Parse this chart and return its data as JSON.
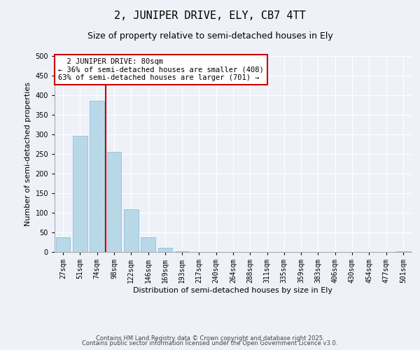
{
  "title": "2, JUNIPER DRIVE, ELY, CB7 4TT",
  "subtitle": "Size of property relative to semi-detached houses in Ely",
  "xlabel": "Distribution of semi-detached houses by size in Ely",
  "ylabel": "Number of semi-detached properties",
  "bar_labels": [
    "27sqm",
    "51sqm",
    "74sqm",
    "98sqm",
    "122sqm",
    "146sqm",
    "169sqm",
    "193sqm",
    "217sqm",
    "240sqm",
    "264sqm",
    "288sqm",
    "311sqm",
    "335sqm",
    "359sqm",
    "383sqm",
    "406sqm",
    "430sqm",
    "454sqm",
    "477sqm",
    "501sqm"
  ],
  "bar_values": [
    37,
    297,
    385,
    256,
    109,
    37,
    10,
    2,
    0,
    0,
    0,
    0,
    0,
    0,
    0,
    0,
    0,
    0,
    0,
    0,
    2
  ],
  "bar_color": "#b8d8e8",
  "bar_edge_color": "#8fbfda",
  "vline_color": "#cc0000",
  "vline_index": 2.5,
  "ylim": [
    0,
    500
  ],
  "yticks": [
    0,
    50,
    100,
    150,
    200,
    250,
    300,
    350,
    400,
    450,
    500
  ],
  "annotation_title": "2 JUNIPER DRIVE: 80sqm",
  "annotation_line1": "← 36% of semi-detached houses are smaller (408)",
  "annotation_line2": "63% of semi-detached houses are larger (701) →",
  "footer1": "Contains HM Land Registry data © Crown copyright and database right 2025.",
  "footer2": "Contains public sector information licensed under the Open Government Licence v3.0.",
  "bg_color": "#eef2f8",
  "grid_color": "#ffffff",
  "annotation_box_color": "#cc0000",
  "title_fontsize": 11,
  "subtitle_fontsize": 9,
  "label_fontsize": 8,
  "tick_fontsize": 7,
  "annotation_fontsize": 7.5,
  "footer_fontsize": 6
}
